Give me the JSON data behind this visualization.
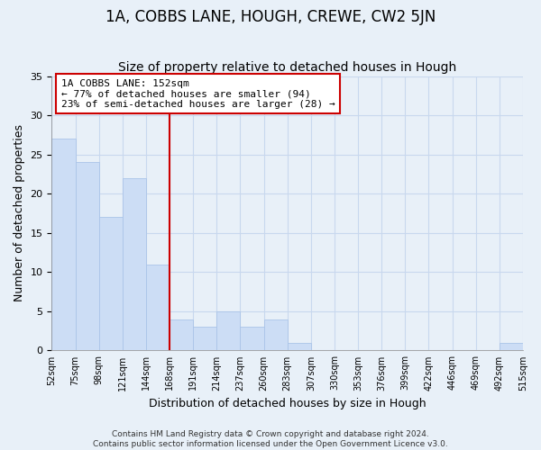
{
  "title": "1A, COBBS LANE, HOUGH, CREWE, CW2 5JN",
  "subtitle": "Size of property relative to detached houses in Hough",
  "xlabel": "Distribution of detached houses by size in Hough",
  "ylabel": "Number of detached properties",
  "footer_line1": "Contains HM Land Registry data © Crown copyright and database right 2024.",
  "footer_line2": "Contains public sector information licensed under the Open Government Licence v3.0.",
  "bins": [
    "52sqm",
    "75sqm",
    "98sqm",
    "121sqm",
    "144sqm",
    "168sqm",
    "191sqm",
    "214sqm",
    "237sqm",
    "260sqm",
    "283sqm",
    "307sqm",
    "330sqm",
    "353sqm",
    "376sqm",
    "399sqm",
    "422sqm",
    "446sqm",
    "469sqm",
    "492sqm",
    "515sqm"
  ],
  "values": [
    27,
    24,
    17,
    22,
    11,
    4,
    3,
    5,
    3,
    4,
    1,
    0,
    0,
    0,
    0,
    0,
    0,
    0,
    0,
    1
  ],
  "bar_color": "#ccddf5",
  "bar_edge_color": "#aac4e8",
  "grid_color": "#c8d8ee",
  "line_color": "#cc0000",
  "red_line_x": 4.5,
  "annotation_text": "1A COBBS LANE: 152sqm\n← 77% of detached houses are smaller (94)\n23% of semi-detached houses are larger (28) →",
  "annotation_box_color": "#ffffff",
  "annotation_border_color": "#cc0000",
  "ylim": [
    0,
    35
  ],
  "yticks": [
    0,
    5,
    10,
    15,
    20,
    25,
    30,
    35
  ],
  "background_color": "#e8f0f8",
  "title_fontsize": 12,
  "subtitle_fontsize": 10,
  "title_fontweight": "normal"
}
